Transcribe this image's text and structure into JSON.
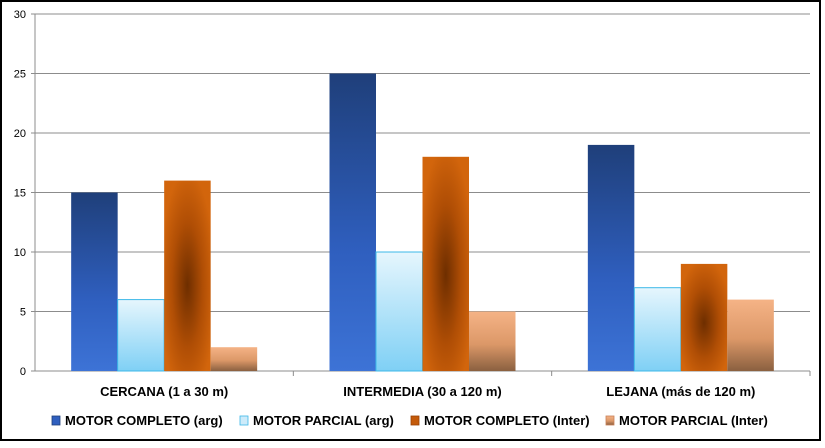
{
  "chart_data": {
    "type": "bar",
    "title": "",
    "xlabel": "",
    "ylabel": "",
    "ylim": [
      0,
      30
    ],
    "yticks": [
      0,
      5,
      10,
      15,
      20,
      25,
      30
    ],
    "grid": true,
    "legend_position": "bottom",
    "categories": [
      "CERCANA (1 a 30 m)",
      "INTERMEDIA (30 a 120 m)",
      "LEJANA (más de 120 m)"
    ],
    "series": [
      {
        "name": "MOTOR COMPLETO (arg)",
        "values": [
          15,
          25,
          19
        ],
        "color": "#2f5fbf"
      },
      {
        "name": "MOTOR PARCIAL (arg)",
        "values": [
          6,
          10,
          7
        ],
        "color": "#a9ddf7"
      },
      {
        "name": "MOTOR COMPLETO (Inter)",
        "values": [
          16,
          18,
          9
        ],
        "color": "#c45a0a"
      },
      {
        "name": "MOTOR PARCIAL (Inter)",
        "values": [
          2,
          5,
          6
        ],
        "color": "#e8a070"
      }
    ]
  }
}
